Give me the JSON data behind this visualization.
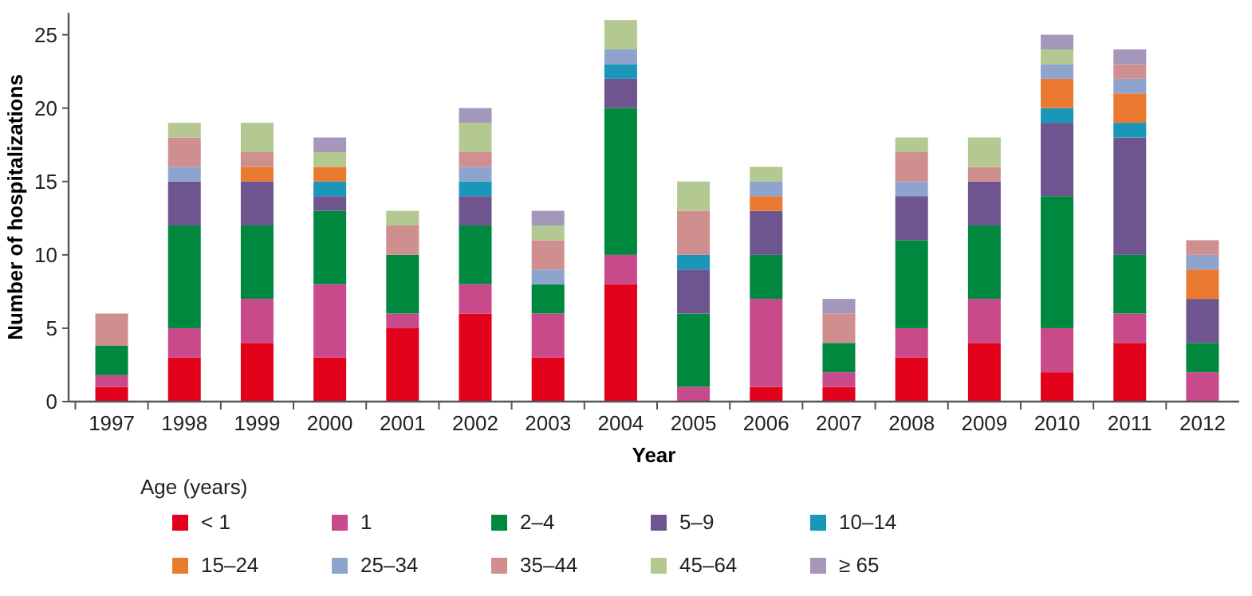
{
  "chart_data": {
    "type": "bar",
    "stacked": true,
    "xlabel": "Year",
    "ylabel": "Number of hospitalizations",
    "legend_title": "Age (years)",
    "legend": "bottom",
    "categories": [
      "1997",
      "1998",
      "1999",
      "2000",
      "2001",
      "2002",
      "2003",
      "2004",
      "2005",
      "2006",
      "2007",
      "2008",
      "2009",
      "2010",
      "2011",
      "2012"
    ],
    "ylim": [
      0,
      26.5
    ],
    "yticks": [
      0,
      5,
      10,
      15,
      20,
      25
    ],
    "series": [
      {
        "name": "< 1",
        "color": "#e2001a",
        "values": [
          1,
          3,
          4,
          3,
          5,
          6,
          3,
          8,
          0,
          1,
          1,
          3,
          4,
          2,
          4,
          0
        ]
      },
      {
        "name": "1",
        "color": "#c94a8a",
        "values": [
          0.8,
          2,
          3,
          5,
          1,
          2,
          3,
          2,
          1,
          6,
          1,
          2,
          3,
          3,
          2,
          2
        ]
      },
      {
        "name": "2–4",
        "color": "#00883e",
        "values": [
          2,
          7,
          5,
          5,
          4,
          4,
          2,
          10,
          5,
          3,
          2,
          6,
          5,
          9,
          4,
          2
        ]
      },
      {
        "name": "5–9",
        "color": "#6e558f",
        "values": [
          0,
          3,
          3,
          1,
          0,
          2,
          0,
          2,
          3,
          3,
          0,
          3,
          3,
          5,
          8,
          3
        ]
      },
      {
        "name": "10–14",
        "color": "#1a97b8",
        "values": [
          0,
          0,
          0,
          1,
          0,
          1,
          0,
          1,
          1,
          0,
          0,
          0,
          0,
          1,
          1,
          0
        ]
      },
      {
        "name": "15–24",
        "color": "#ea7a30",
        "values": [
          0,
          0,
          1,
          1,
          0,
          0,
          0,
          0,
          0,
          1,
          0,
          0,
          0,
          2,
          2,
          2
        ]
      },
      {
        "name": "25–34",
        "color": "#8ea4cf",
        "values": [
          0,
          1,
          0,
          0,
          0,
          1,
          1,
          1,
          0,
          1,
          0,
          1,
          0,
          1,
          1,
          1
        ]
      },
      {
        "name": "35–44",
        "color": "#d08f8f",
        "values": [
          2.2,
          2,
          1,
          0,
          2,
          1,
          2,
          0,
          3,
          0,
          2,
          2,
          1,
          0,
          1,
          1
        ]
      },
      {
        "name": "45–64",
        "color": "#b3c991",
        "values": [
          0,
          1,
          2,
          1,
          1,
          2,
          1,
          2,
          2,
          1,
          0,
          1,
          2,
          1,
          0,
          0
        ]
      },
      {
        "name": "≥ 65",
        "color": "#a497bb",
        "values": [
          0,
          0,
          0,
          1,
          0,
          1,
          1,
          0,
          0,
          0,
          1,
          0,
          0,
          1,
          1,
          0
        ]
      }
    ]
  }
}
